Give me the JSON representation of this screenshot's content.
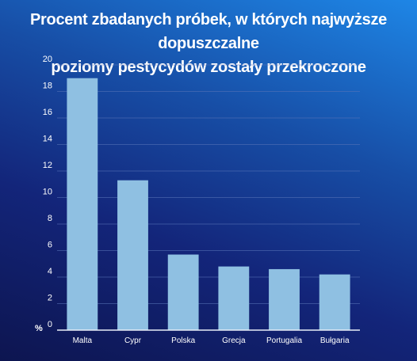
{
  "chart_data": {
    "type": "bar",
    "title_lines": [
      "Procent zbadanych próbek, w których najwyższe dopuszczalne",
      "poziomy pestycydów zostały przekroczone"
    ],
    "categories": [
      "Malta",
      "Cypr",
      "Polska",
      "Grecja",
      "Portugalia",
      "Bułgaria"
    ],
    "values": [
      19.0,
      11.3,
      5.7,
      4.8,
      4.6,
      4.2
    ],
    "ylabel": "%",
    "yticks": [
      0,
      2,
      4,
      6,
      8,
      10,
      12,
      14,
      16,
      18,
      20
    ],
    "ylim": [
      0,
      20
    ],
    "grid": true,
    "colors": {
      "bar": "#8fc0e2",
      "grid": "#5a74b8",
      "axis": "#e8eef8"
    }
  }
}
